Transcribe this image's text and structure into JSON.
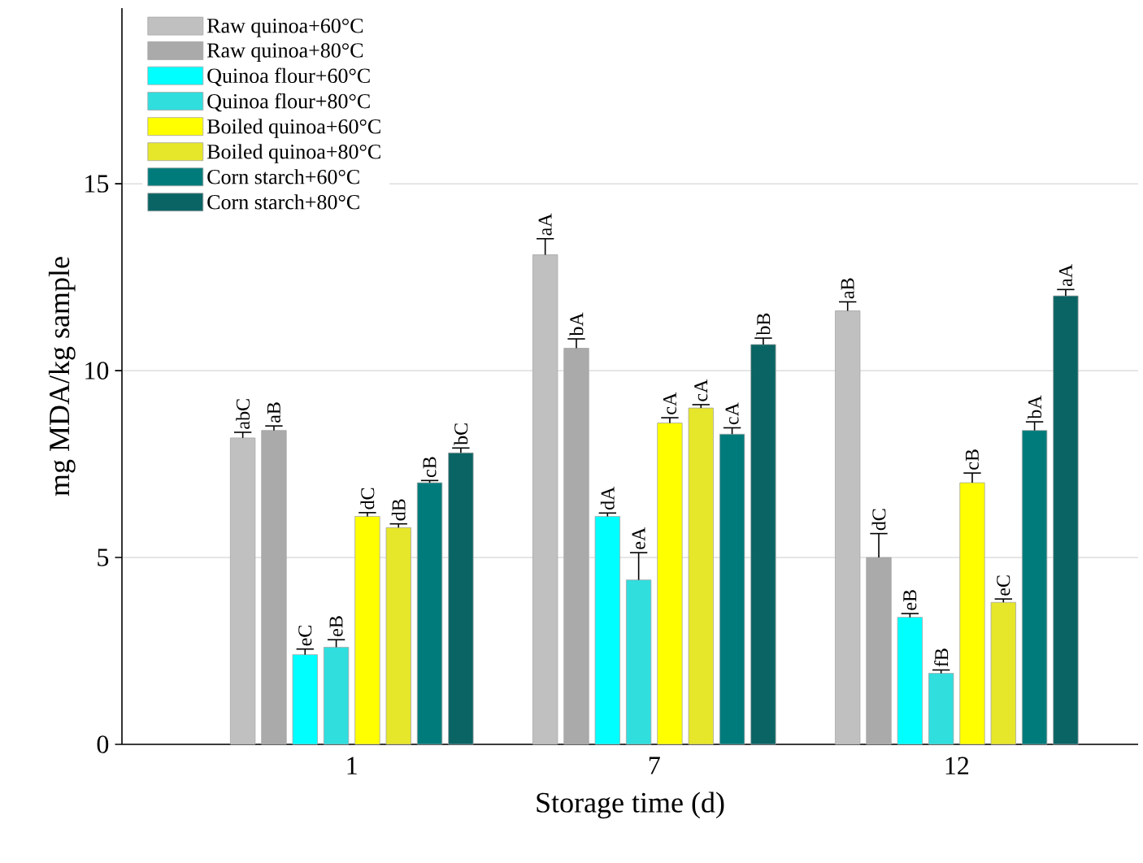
{
  "chart_data": {
    "type": "bar",
    "xlabel": "Storage time (d)",
    "ylabel": "mg MDA/kg sample",
    "categories": [
      "1",
      "7",
      "12"
    ],
    "ylim": [
      0,
      19.7
    ],
    "yticks": [
      0,
      5,
      10,
      15
    ],
    "grid": "y",
    "legend": "top left",
    "series": [
      {
        "name": "Raw quinoa+60°C",
        "color": "#c0c0c0",
        "values": [
          8.2,
          13.1,
          11.6
        ],
        "errors": [
          0.15,
          0.43,
          0.24
        ],
        "value_labels": [
          "abC",
          "aA",
          "aB"
        ]
      },
      {
        "name": "Raw quinoa+80°C",
        "color": "#aaaaaa",
        "values": [
          8.4,
          10.6,
          5.0
        ],
        "errors": [
          0.12,
          0.25,
          0.64
        ],
        "value_labels": [
          "aB",
          "bA",
          "dC"
        ]
      },
      {
        "name": "Quinoa flour+60°C",
        "color": "#00ffff",
        "values": [
          2.4,
          6.1,
          3.4
        ],
        "errors": [
          0.15,
          0.09,
          0.1
        ],
        "value_labels": [
          "eC",
          "dA",
          "eB"
        ]
      },
      {
        "name": "Quinoa flour+80°C",
        "color": "#30dede",
        "values": [
          2.6,
          4.4,
          1.9
        ],
        "errors": [
          0.2,
          0.73,
          0.09
        ],
        "value_labels": [
          "eB",
          "eA",
          "fB"
        ]
      },
      {
        "name": "Boiled quinoa+60°C",
        "color": "#ffff00",
        "values": [
          6.1,
          8.6,
          7.0
        ],
        "errors": [
          0.1,
          0.14,
          0.26
        ],
        "value_labels": [
          "dC",
          "cA",
          "cB"
        ]
      },
      {
        "name": "Boiled quinoa+80°C",
        "color": "#e6e62a",
        "values": [
          5.8,
          9.0,
          3.8
        ],
        "errors": [
          0.1,
          0.09,
          0.09
        ],
        "value_labels": [
          "dB",
          "cA",
          "eC"
        ]
      },
      {
        "name": "Corn starch+60°C",
        "color": "#007b7b",
        "values": [
          7.0,
          8.3,
          8.4
        ],
        "errors": [
          0.06,
          0.17,
          0.23
        ],
        "value_labels": [
          "cB",
          "cA",
          "bA"
        ]
      },
      {
        "name": "Corn starch+80°C",
        "color": "#0a6464",
        "values": [
          7.8,
          10.7,
          12.0
        ],
        "errors": [
          0.13,
          0.17,
          0.17
        ],
        "value_labels": [
          "bC",
          "bB",
          "aA"
        ]
      }
    ]
  }
}
